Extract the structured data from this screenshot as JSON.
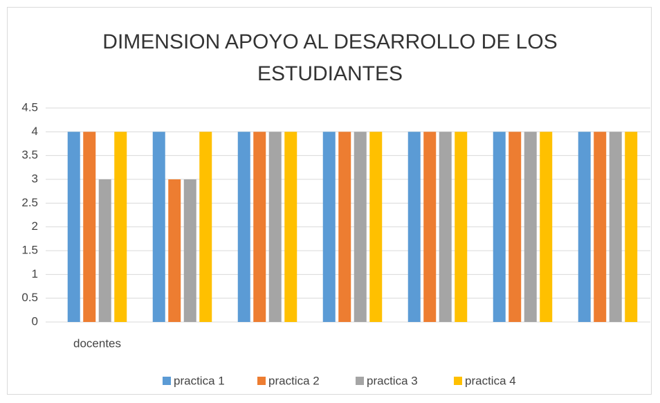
{
  "chart_data": {
    "type": "bar",
    "title": "DIMENSION APOYO AL DESARROLLO DE LOS ESTUDIANTES",
    "categories": [
      "docentes",
      null,
      null,
      null,
      null,
      null,
      null
    ],
    "series": [
      {
        "name": "practica 1",
        "color": "#5b9bd5",
        "values": [
          4,
          4,
          4,
          4,
          4,
          4,
          4
        ]
      },
      {
        "name": "practica 2",
        "color": "#ed7d31",
        "values": [
          4,
          3,
          4,
          4,
          4,
          4,
          4
        ]
      },
      {
        "name": "practica 3",
        "color": "#a5a5a5",
        "values": [
          3,
          3,
          4,
          4,
          4,
          4,
          4
        ]
      },
      {
        "name": "practica 4",
        "color": "#ffc000",
        "values": [
          4,
          4,
          4,
          4,
          4,
          4,
          4
        ]
      }
    ],
    "ylim": [
      0,
      4.5
    ],
    "yticks": [
      0,
      0.5,
      1,
      1.5,
      2,
      2.5,
      3,
      3.5,
      4,
      4.5
    ],
    "grid": true,
    "legend": "bottom"
  }
}
